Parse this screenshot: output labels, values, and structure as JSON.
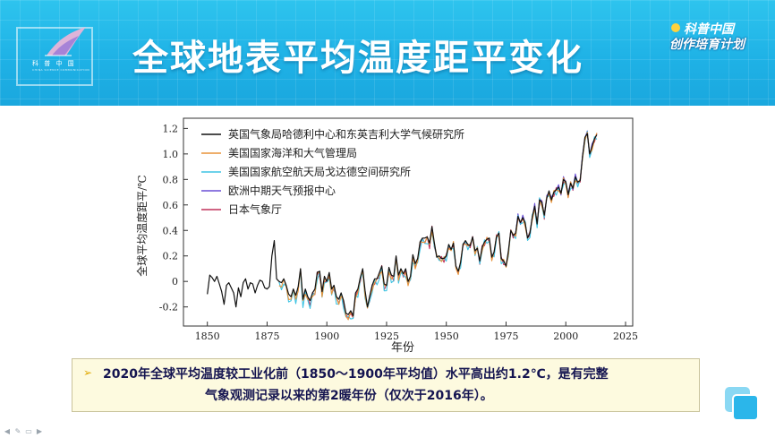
{
  "header": {
    "title": "全球地表平均温度距平变化",
    "logo_text": "科 普 中 国",
    "logo_sub": "CHINA SCIENCE COMMUNICATION",
    "brand_line1": "科普中国",
    "brand_line2": "创作培育计划"
  },
  "note": {
    "bullet": "➢",
    "line1": "2020年全球平均温度较工业化前（1850～1900年平均值）水平高出约1.2℃，是有完整",
    "line2": "气象观测记录以来的第2暖年份（仅次于2016年）。"
  },
  "colors": {
    "banner": "#1fb2e6",
    "note_bg": "#fdfadf",
    "note_text": "#141450",
    "bullet": "#e0a800"
  },
  "chart_data": {
    "type": "line",
    "title": "",
    "xlabel": "年份",
    "ylabel": "全球平均温度距平/℃",
    "xlim": [
      1840,
      2028
    ],
    "ylim": [
      -0.35,
      1.28
    ],
    "x_ticks": [
      1850,
      1875,
      1900,
      1925,
      1950,
      1975,
      2000,
      2025
    ],
    "y_ticks": [
      -0.2,
      0,
      0.2,
      0.4,
      0.6,
      0.8,
      1.0,
      1.2
    ],
    "legend_position": "top-left",
    "series": [
      {
        "name": "英国气象局哈德利中心和东英吉利大学气候研究所",
        "color": "#111111",
        "start_year": 1850,
        "values": [
          -0.1,
          0.05,
          0.03,
          0.0,
          0.04,
          -0.02,
          -0.08,
          -0.18,
          -0.03,
          -0.01,
          -0.05,
          -0.09,
          -0.2,
          -0.05,
          -0.12,
          -0.01,
          0.02,
          -0.06,
          -0.01,
          -0.02,
          -0.09,
          -0.03,
          0.01,
          0.0,
          -0.05,
          -0.06,
          -0.04,
          0.2,
          0.32,
          0.02,
          0.0,
          -0.01,
          0.02,
          -0.03,
          -0.1,
          -0.12,
          -0.06,
          -0.11,
          -0.04,
          0.1,
          -0.14,
          -0.06,
          -0.12,
          -0.15,
          -0.09,
          -0.06,
          0.07,
          0.08,
          -0.08,
          0.04,
          0.0,
          0.07,
          -0.06,
          -0.03,
          -0.12,
          -0.14,
          -0.09,
          -0.15,
          -0.25,
          -0.26,
          -0.23,
          -0.27,
          -0.09,
          -0.06,
          0.03,
          0.1,
          -0.07,
          -0.2,
          -0.11,
          -0.03,
          0.02,
          0.02,
          0.07,
          0.12,
          -0.02,
          -0.03,
          0.11,
          0.05,
          0.04,
          0.2,
          0.05,
          0.1,
          0.06,
          0.1,
          0.0,
          0.04,
          0.21,
          0.14,
          0.18,
          0.31,
          0.34,
          0.34,
          0.35,
          0.3,
          0.43,
          0.3,
          0.19,
          0.2,
          0.18,
          0.18,
          0.2,
          0.29,
          0.25,
          0.3,
          0.12,
          0.08,
          0.15,
          0.29,
          0.32,
          0.29,
          0.28,
          0.35,
          0.24,
          0.26,
          0.16,
          0.27,
          0.31,
          0.33,
          0.34,
          0.19,
          0.23,
          0.35,
          0.38,
          0.18,
          0.16,
          0.12,
          0.24,
          0.4,
          0.36,
          0.38,
          0.51,
          0.46,
          0.5,
          0.46,
          0.34,
          0.38,
          0.51,
          0.59,
          0.45,
          0.64,
          0.62,
          0.52,
          0.65,
          0.71,
          0.64,
          0.7,
          0.72,
          0.74,
          0.69,
          0.8,
          0.78,
          0.68,
          0.77,
          0.73,
          0.82,
          0.78,
          0.79,
          0.98,
          1.13,
          1.16,
          1.0,
          1.06,
          1.12,
          1.15
        ],
        "note": "per-year values from 1850"
      },
      {
        "name": "美国国家海洋和大气管理局",
        "color": "#e8933a",
        "start_year": 1880
      },
      {
        "name": "美国国家航空航天局戈达德空间研究所",
        "color": "#3ec4e3",
        "start_year": 1880
      },
      {
        "name": "欧洲中期天气预报中心",
        "color": "#6a4fd6",
        "start_year": 1979
      },
      {
        "name": "日本气象厅",
        "color": "#c0315a",
        "start_year": 1891
      }
    ]
  }
}
